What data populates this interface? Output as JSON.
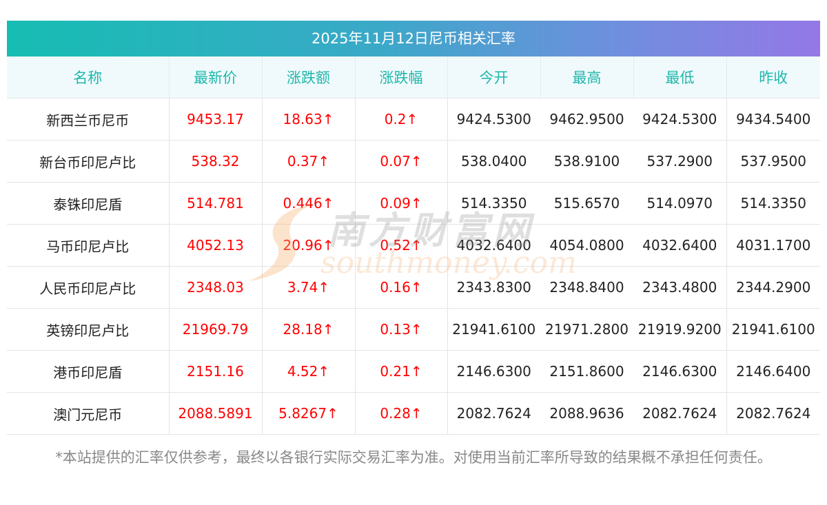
{
  "title": "2025年11月12日尼币相关汇率",
  "headers": [
    "名称",
    "最新价",
    "涨跌额",
    "涨跌幅",
    "今开",
    "最高",
    "最低",
    "昨收"
  ],
  "rows": [
    {
      "name": "新西兰币尼币",
      "latest": "9453.17",
      "change": "18.63↑",
      "pct": "0.2↑",
      "open": "9424.5300",
      "high": "9462.9500",
      "low": "9424.5300",
      "prev": "9434.5400"
    },
    {
      "name": "新台币印尼卢比",
      "latest": "538.32",
      "change": "0.37↑",
      "pct": "0.07↑",
      "open": "538.0400",
      "high": "538.9100",
      "low": "537.2900",
      "prev": "537.9500"
    },
    {
      "name": "泰铢印尼盾",
      "latest": "514.781",
      "change": "0.446↑",
      "pct": "0.09↑",
      "open": "514.3350",
      "high": "515.6570",
      "low": "514.0970",
      "prev": "514.3350"
    },
    {
      "name": "马币印尼卢比",
      "latest": "4052.13",
      "change": "20.96↑",
      "pct": "0.52↑",
      "open": "4032.6400",
      "high": "4054.0800",
      "low": "4032.6400",
      "prev": "4031.1700"
    },
    {
      "name": "人民币印尼卢比",
      "latest": "2348.03",
      "change": "3.74↑",
      "pct": "0.16↑",
      "open": "2343.8300",
      "high": "2348.8400",
      "low": "2343.4800",
      "prev": "2344.2900"
    },
    {
      "name": "英镑印尼卢比",
      "latest": "21969.79",
      "change": "28.18↑",
      "pct": "0.13↑",
      "open": "21941.6100",
      "high": "21971.2800",
      "low": "21919.9200",
      "prev": "21941.6100"
    },
    {
      "name": "港币印尼盾",
      "latest": "2151.16",
      "change": "4.52↑",
      "pct": "0.21↑",
      "open": "2146.6300",
      "high": "2151.8600",
      "low": "2146.6300",
      "prev": "2146.6400"
    },
    {
      "name": "澳门元尼币",
      "latest": "2088.5891",
      "change": "5.8267↑",
      "pct": "0.28↑",
      "open": "2082.7624",
      "high": "2088.9636",
      "low": "2082.7624",
      "prev": "2082.7624"
    }
  ],
  "disclaimer": "*本站提供的汇率仅供参考，最终以各银行实际交易汇率为准。对使用当前汇率所导致的结果概不承担任何责任。",
  "watermark": {
    "cn": "南方财富网",
    "en": "southmoney.com"
  },
  "colors": {
    "header_text": "#1fb7aa",
    "up": "#ff0000",
    "gradient_start": "#16bdb2",
    "gradient_end": "#9478e6"
  }
}
